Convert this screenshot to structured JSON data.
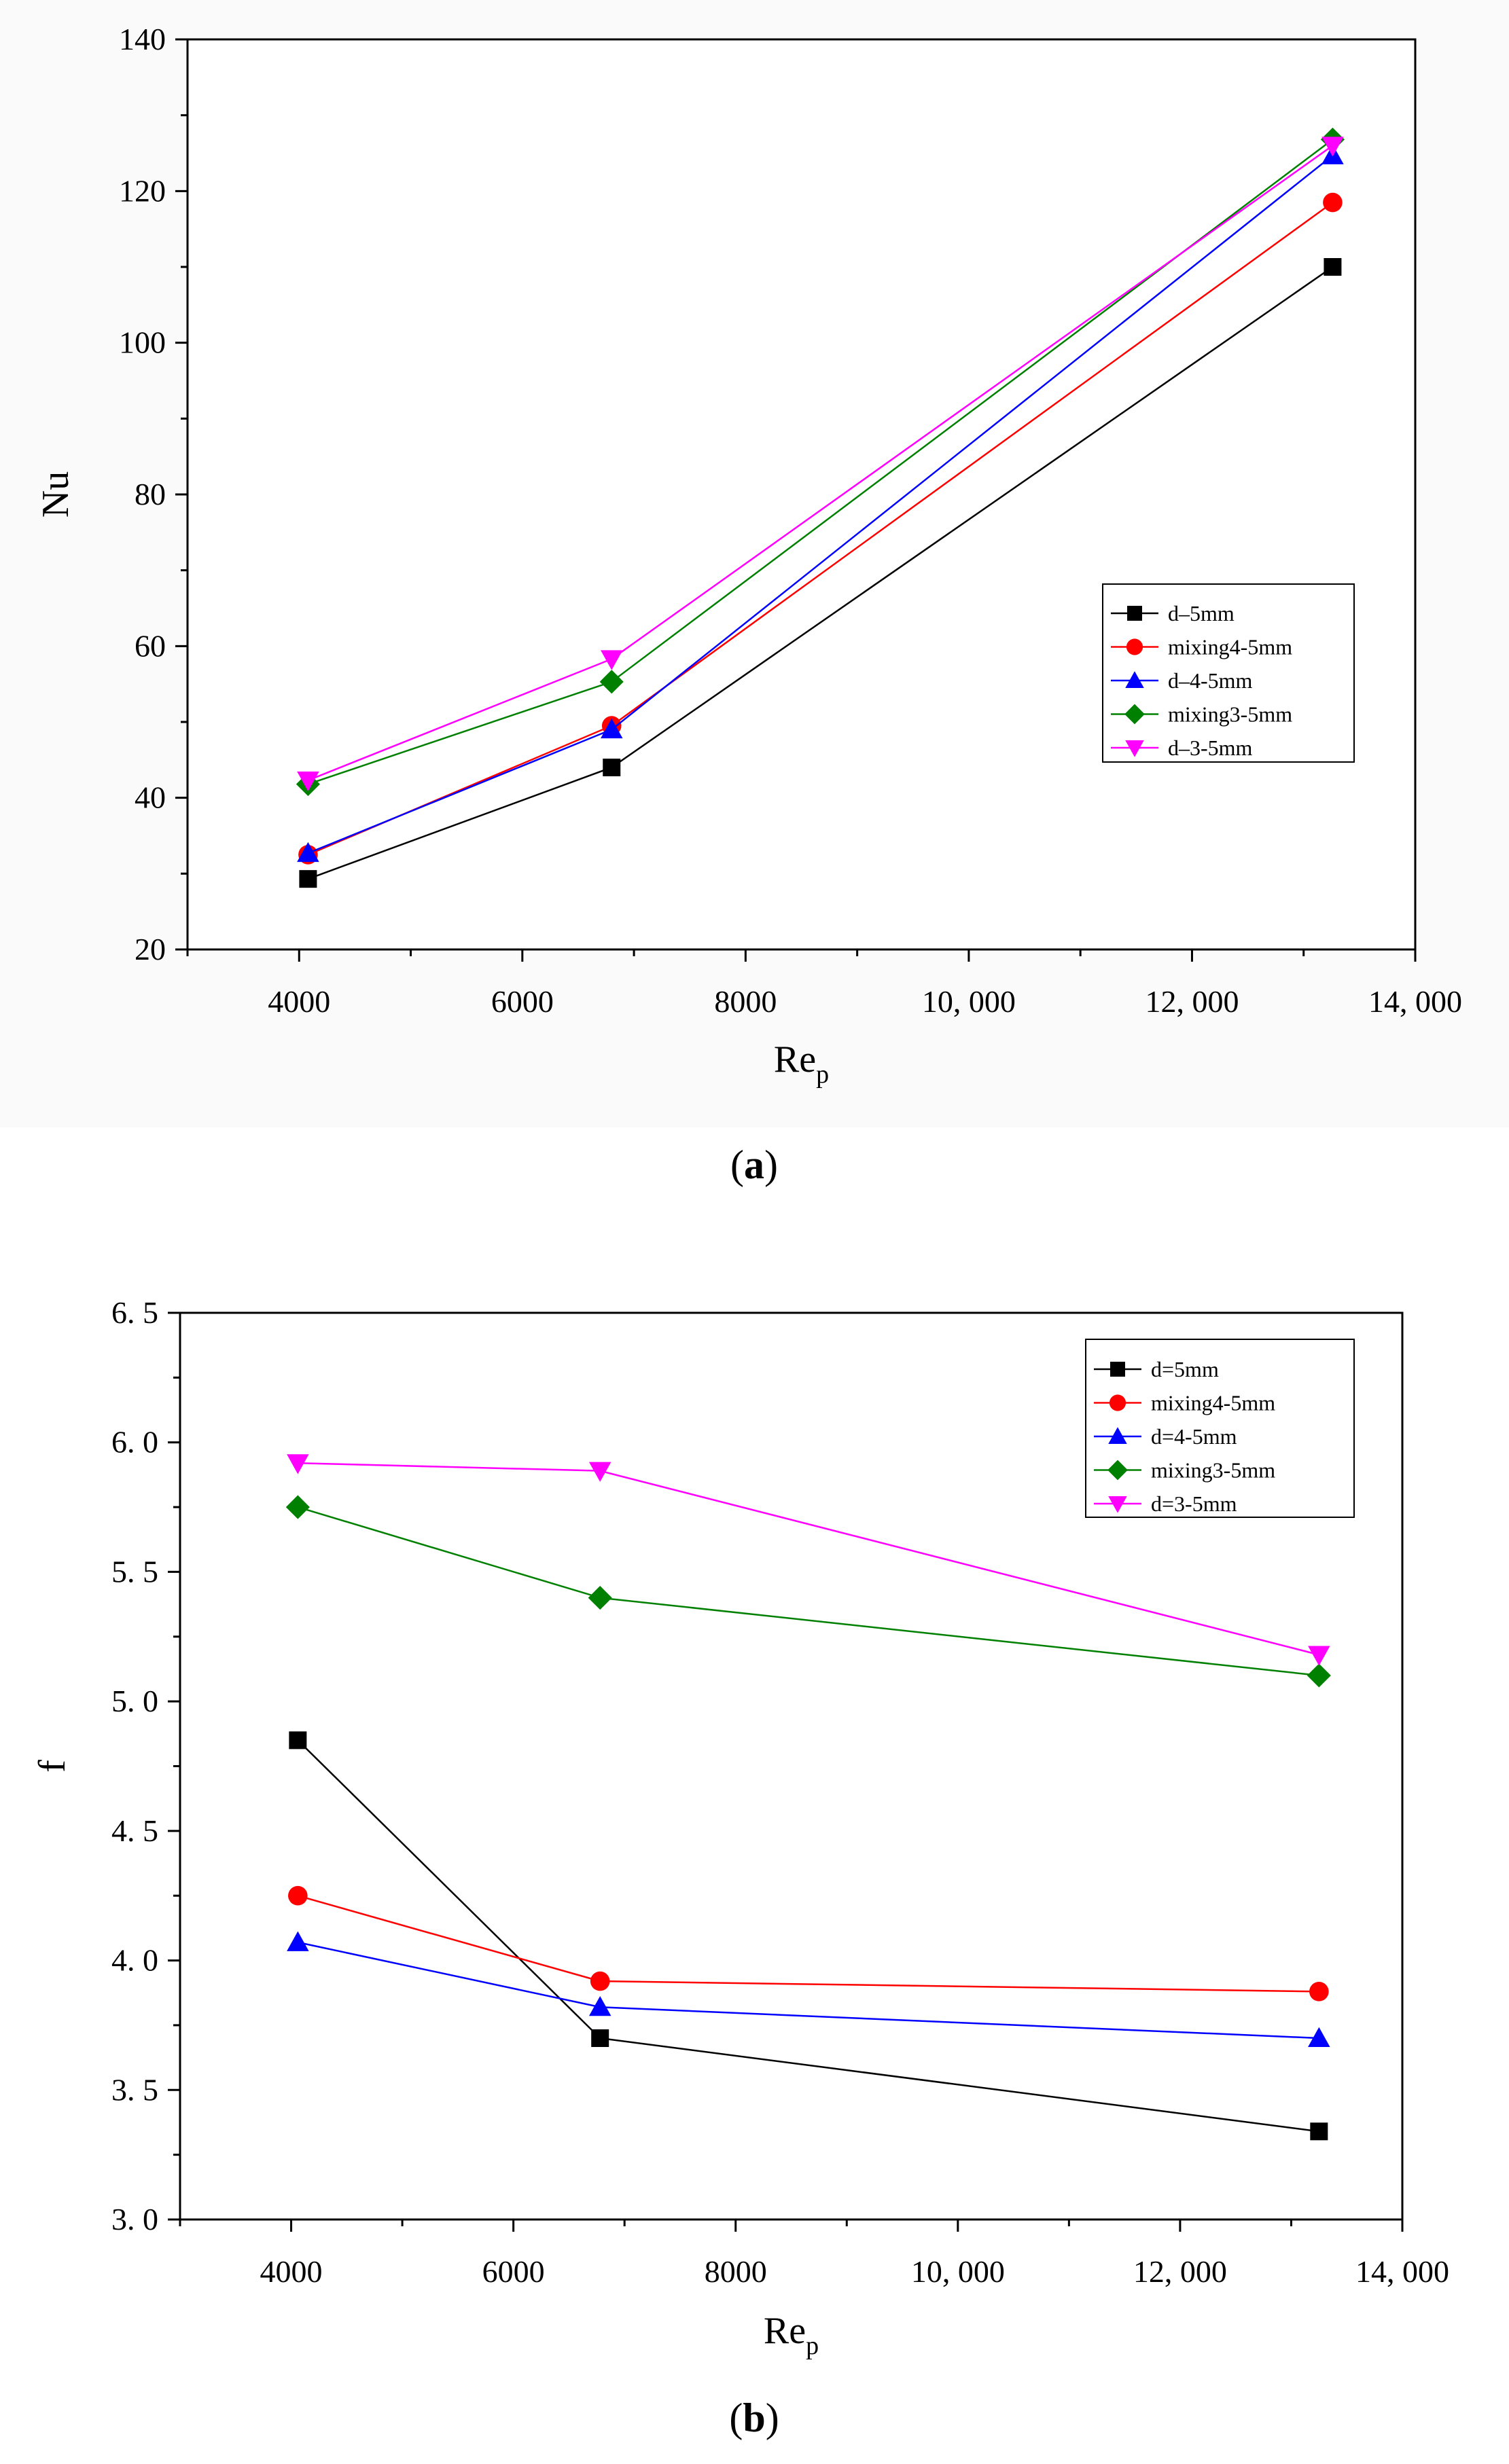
{
  "chart_data": [
    {
      "id": "a",
      "type": "line",
      "caption": "(a)",
      "caption_parts": [
        "(",
        "a",
        ")"
      ],
      "title": "",
      "xlabel": "Re",
      "xlabel_sub": "p",
      "ylabel": "Nu",
      "xlim": [
        3000,
        14000
      ],
      "ylim": [
        20,
        140
      ],
      "xticks": [
        4000,
        6000,
        8000,
        10000,
        12000,
        14000
      ],
      "xtick_labels": [
        "4000",
        "6000",
        "8000",
        "10, 000",
        "12, 000",
        "14, 000"
      ],
      "yticks": [
        20,
        40,
        60,
        80,
        100,
        120,
        140
      ],
      "ytick_labels": [
        "20",
        "40",
        "60",
        "80",
        "100",
        "120",
        "140"
      ],
      "x_minor": 1000,
      "y_minor": 10,
      "legend_position": "right",
      "x": [
        4080,
        6800,
        13260
      ],
      "series": [
        {
          "name": "d–5mm",
          "color": "#000000",
          "marker": "square",
          "values": [
            29.3,
            44.0,
            110.0
          ]
        },
        {
          "name": "mixing4-5mm",
          "color": "#ff0000",
          "marker": "circle",
          "values": [
            32.5,
            49.5,
            118.5
          ]
        },
        {
          "name": "d–4-5mm",
          "color": "#0000ff",
          "marker": "triangle-up",
          "values": [
            32.7,
            49.0,
            124.7
          ]
        },
        {
          "name": "mixing3-5mm",
          "color": "#008000",
          "marker": "diamond",
          "values": [
            41.8,
            55.3,
            126.8
          ]
        },
        {
          "name": "d–3-5mm",
          "color": "#ff00ff",
          "marker": "triangle-down",
          "values": [
            42.3,
            58.3,
            126.0
          ]
        }
      ]
    },
    {
      "id": "b",
      "type": "line",
      "caption": "(b)",
      "caption_parts": [
        "(",
        "b",
        ")"
      ],
      "title": "",
      "xlabel": "Re",
      "xlabel_sub": "p",
      "ylabel": "f",
      "xlim": [
        3000,
        14000
      ],
      "ylim": [
        3.0,
        6.5
      ],
      "xticks": [
        4000,
        6000,
        8000,
        10000,
        12000,
        14000
      ],
      "xtick_labels": [
        "4000",
        "6000",
        "8000",
        "10, 000",
        "12, 000",
        "14, 000"
      ],
      "yticks": [
        3.0,
        3.5,
        4.0,
        4.5,
        5.0,
        5.5,
        6.0,
        6.5
      ],
      "ytick_labels": [
        "3. 0",
        "3. 5",
        "4. 0",
        "4. 5",
        "5. 0",
        "5. 5",
        "6. 0",
        "6. 5"
      ],
      "x_minor": 1000,
      "y_minor": 0.25,
      "legend_position": "top-right",
      "x": [
        4060,
        6780,
        13250
      ],
      "series": [
        {
          "name": "d=5mm",
          "color": "#000000",
          "marker": "square",
          "values": [
            4.85,
            3.7,
            3.34
          ]
        },
        {
          "name": "mixing4-5mm",
          "color": "#ff0000",
          "marker": "circle",
          "values": [
            4.25,
            3.92,
            3.88
          ]
        },
        {
          "name": "d=4-5mm",
          "color": "#0000ff",
          "marker": "triangle-up",
          "values": [
            4.07,
            3.82,
            3.7
          ]
        },
        {
          "name": "mixing3-5mm",
          "color": "#008000",
          "marker": "diamond",
          "values": [
            5.75,
            5.4,
            5.1
          ]
        },
        {
          "name": "d=3-5mm",
          "color": "#ff00ff",
          "marker": "triangle-down",
          "values": [
            5.92,
            5.89,
            5.18
          ]
        }
      ]
    }
  ]
}
